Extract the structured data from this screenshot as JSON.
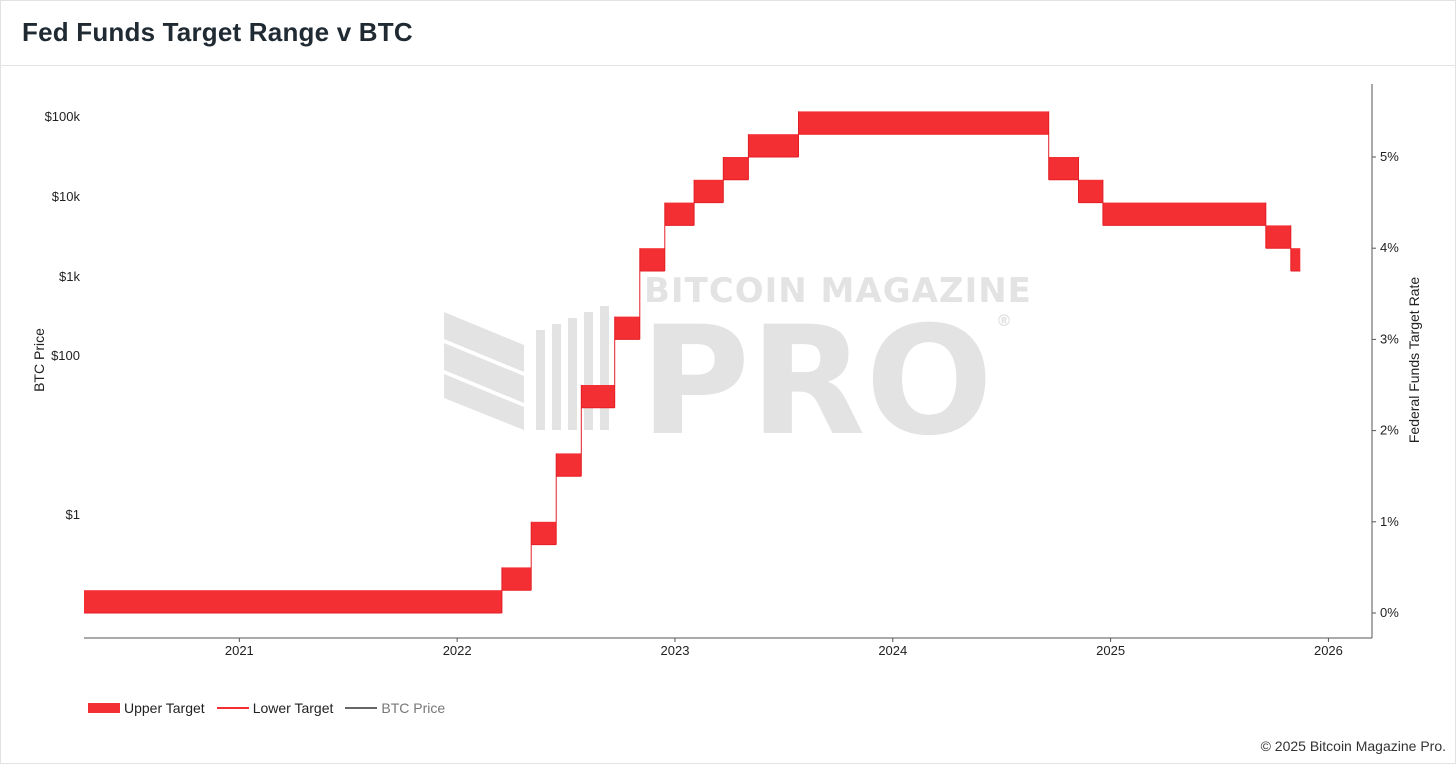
{
  "title": "Fed Funds Target Range v BTC",
  "copyright": "© 2025 Bitcoin Magazine Pro.",
  "watermark": {
    "line1": "BITCOIN MAGAZINE",
    "line2": "PRO",
    "mark": "®"
  },
  "colors": {
    "band": "#f42f33",
    "axis": "#555555",
    "watermark": "#e3e3e3",
    "btc_line": "#666666"
  },
  "legend": {
    "upper": "Upper Target",
    "lower": "Lower Target",
    "btc": "BTC Price"
  },
  "chart_data": {
    "type": "area",
    "xlabel": "",
    "ylabel_left": "BTC Price",
    "ylabel_right": "Federal Funds Target Rate",
    "x_range": [
      "2020-04-15",
      "2026-03-15"
    ],
    "x_ticks": [
      "2021",
      "2022",
      "2023",
      "2024",
      "2025",
      "2026"
    ],
    "y_left_ticks": [
      "$1",
      "$100",
      "$1k",
      "$10k",
      "$100k"
    ],
    "y_right_ticks": [
      "0%",
      "1%",
      "2%",
      "3%",
      "4%",
      "5%"
    ],
    "y_right_range": [
      -0.1,
      5.6
    ],
    "grid": false,
    "legend_position": "bottom-left",
    "series": [
      {
        "name": "Upper Target",
        "steps": [
          {
            "start": "2020-04-15",
            "end": "2022-03-17",
            "lower": 0.0,
            "upper": 0.25
          },
          {
            "start": "2022-03-17",
            "end": "2022-05-05",
            "lower": 0.25,
            "upper": 0.5
          },
          {
            "start": "2022-05-05",
            "end": "2022-06-16",
            "lower": 0.75,
            "upper": 1.0
          },
          {
            "start": "2022-06-16",
            "end": "2022-07-28",
            "lower": 1.5,
            "upper": 1.75
          },
          {
            "start": "2022-07-28",
            "end": "2022-09-22",
            "lower": 2.25,
            "upper": 2.5
          },
          {
            "start": "2022-09-22",
            "end": "2022-11-03",
            "lower": 3.0,
            "upper": 3.25
          },
          {
            "start": "2022-11-03",
            "end": "2022-12-15",
            "lower": 3.75,
            "upper": 4.0
          },
          {
            "start": "2022-12-15",
            "end": "2023-02-02",
            "lower": 4.25,
            "upper": 4.5
          },
          {
            "start": "2023-02-02",
            "end": "2023-03-23",
            "lower": 4.5,
            "upper": 4.75
          },
          {
            "start": "2023-03-23",
            "end": "2023-05-04",
            "lower": 4.75,
            "upper": 5.0
          },
          {
            "start": "2023-05-04",
            "end": "2023-07-27",
            "lower": 5.0,
            "upper": 5.25
          },
          {
            "start": "2023-07-27",
            "end": "2024-09-19",
            "lower": 5.25,
            "upper": 5.5
          },
          {
            "start": "2024-09-19",
            "end": "2024-11-08",
            "lower": 4.75,
            "upper": 5.0
          },
          {
            "start": "2024-11-08",
            "end": "2024-12-19",
            "lower": 4.5,
            "upper": 4.75
          },
          {
            "start": "2024-12-19",
            "end": "2025-09-18",
            "lower": 4.25,
            "upper": 4.5
          },
          {
            "start": "2025-09-18",
            "end": "2025-10-30",
            "lower": 4.0,
            "upper": 4.25
          },
          {
            "start": "2025-10-30",
            "end": "2025-11-15",
            "lower": 3.75,
            "upper": 4.0
          }
        ]
      },
      {
        "name": "Lower Target"
      },
      {
        "name": "BTC Price"
      }
    ]
  }
}
